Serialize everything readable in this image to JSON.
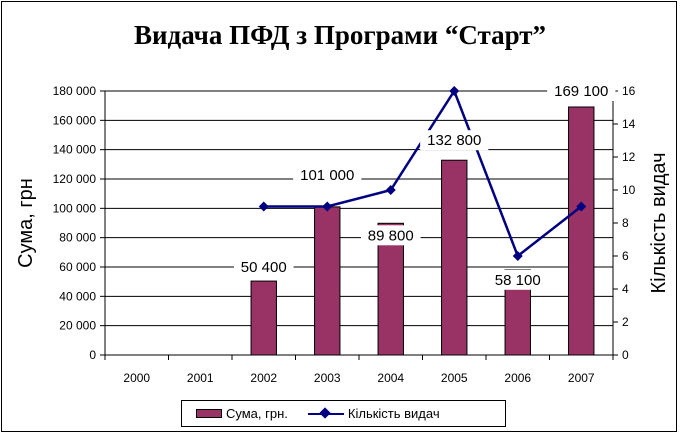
{
  "chart_data": {
    "type": "bar",
    "title": "Видача ПФД з Програми “Старт”",
    "categories": [
      "2000",
      "2001",
      "2002",
      "2003",
      "2004",
      "2005",
      "2006",
      "2007"
    ],
    "ylabel": "Сума, грн",
    "y2label": "Кількість видач",
    "ylim": [
      0,
      180000
    ],
    "y2lim": [
      0,
      16
    ],
    "yticks": [
      "0",
      "20 000",
      "40 000",
      "60 000",
      "80 000",
      "100 000",
      "120 000",
      "140 000",
      "160 000",
      "180 000"
    ],
    "y2ticks": [
      "0",
      "2",
      "4",
      "6",
      "8",
      "10",
      "12",
      "14",
      "16"
    ],
    "grid": true,
    "legend_position": "bottom",
    "series": [
      {
        "name": "Сума, грн.",
        "type": "bar",
        "axis": "left",
        "color": "#993366",
        "values": [
          null,
          null,
          50400,
          101000,
          89800,
          132800,
          58100,
          169100
        ],
        "data_labels": [
          null,
          null,
          "50 400",
          "101 000",
          "89 800",
          "132 800",
          "58 100",
          "169 100"
        ]
      },
      {
        "name": "Кількість видач",
        "type": "line",
        "axis": "right",
        "color": "#000080",
        "marker": "diamond",
        "values": [
          null,
          null,
          9,
          9,
          10,
          16,
          6,
          9
        ]
      }
    ]
  }
}
